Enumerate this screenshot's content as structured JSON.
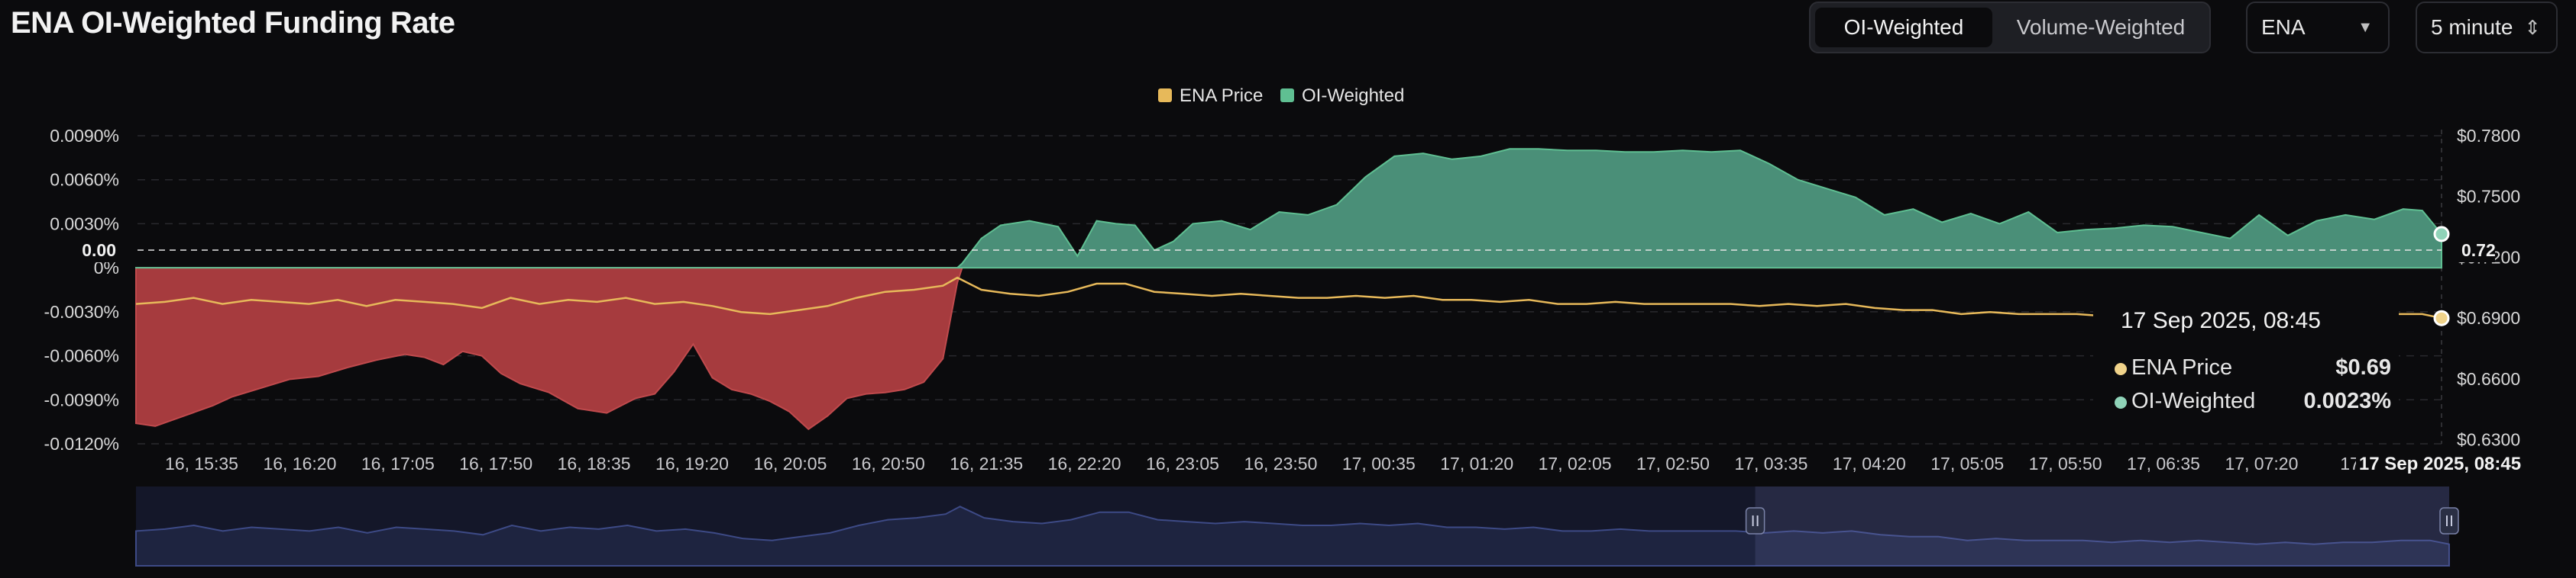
{
  "header": {
    "title": "ENA OI-Weighted Funding Rate",
    "tabs": [
      {
        "label": "OI-Weighted",
        "active": true
      },
      {
        "label": "Volume-Weighted",
        "active": false
      }
    ],
    "coin_select": {
      "value": "ENA",
      "icon": "caret-down-icon"
    },
    "interval_select": {
      "value": "5 minute",
      "icon": "updown-chevron-icon"
    }
  },
  "chart_data": {
    "type": "area",
    "title": "ENA OI-Weighted Funding Rate",
    "legend": {
      "placement": "top-center",
      "items": [
        {
          "name": "ENA Price",
          "color": "#e7b95a"
        },
        {
          "name": "OI-Weighted",
          "color": "#5fbf92"
        }
      ]
    },
    "colors": {
      "positive": "#4a8f78",
      "negative": "#a63b3e",
      "price": "#e7b95a",
      "grid": "#2a2a2e"
    },
    "y_left": {
      "ticks": [
        "0.0090%",
        "0.0060%",
        "0.0030%",
        "0%",
        "-0.0030%",
        "-0.0060%",
        "-0.0090%",
        "-0.0120%"
      ],
      "tick_values": [
        0.009,
        0.006,
        0.003,
        0,
        -0.003,
        -0.006,
        -0.009,
        -0.012
      ],
      "range": [
        -0.012,
        0.009
      ]
    },
    "y_right": {
      "ticks": [
        "$0.7800",
        "$0.7500",
        "$0.7200",
        "$0.6900",
        "$0.6600",
        "$0.6300"
      ],
      "tick_values": [
        0.78,
        0.75,
        0.72,
        0.69,
        0.66,
        0.63
      ],
      "range": [
        0.628,
        0.78
      ]
    },
    "x_ticks": [
      "16, 15:35",
      "16, 16:20",
      "16, 17:05",
      "16, 17:50",
      "16, 18:35",
      "16, 19:20",
      "16, 20:05",
      "16, 20:50",
      "16, 21:35",
      "16, 22:20",
      "16, 23:05",
      "16, 23:50",
      "17, 00:35",
      "17, 01:20",
      "17, 02:05",
      "17, 02:50",
      "17, 03:35",
      "17, 04:20",
      "17, 05:05",
      "17, 05:50",
      "17, 06:35",
      "17, 07:20",
      "17, 0"
    ],
    "x_range": [
      0,
      24
    ],
    "crosshair": {
      "x_label": "17 Sep 2025, 08:45",
      "left_label": "0.00",
      "right_label": "0.72",
      "left_value": 0.0,
      "right_value": 0.72
    },
    "series": [
      {
        "name": "OI-Weighted",
        "type": "area",
        "x": [
          0,
          0.2,
          0.5,
          0.8,
          1.0,
          1.3,
          1.6,
          1.9,
          2.2,
          2.5,
          2.8,
          3.0,
          3.2,
          3.4,
          3.6,
          3.8,
          4.0,
          4.3,
          4.6,
          4.9,
          5.2,
          5.4,
          5.6,
          5.8,
          6.0,
          6.2,
          6.4,
          6.6,
          6.8,
          7.0,
          7.2,
          7.4,
          7.6,
          7.8,
          8.0,
          8.2,
          8.4,
          8.55,
          8.6,
          8.8,
          9.0,
          9.3,
          9.6,
          9.8,
          10.0,
          10.2,
          10.4,
          10.6,
          10.8,
          11.0,
          11.3,
          11.6,
          11.9,
          12.2,
          12.5,
          12.8,
          13.1,
          13.4,
          13.7,
          14.0,
          14.3,
          14.6,
          14.9,
          15.2,
          15.5,
          15.8,
          16.1,
          16.4,
          16.7,
          17.0,
          17.3,
          17.6,
          17.9,
          18.2,
          18.5,
          18.8,
          19.1,
          19.4,
          19.7,
          20.0,
          20.3,
          20.6,
          20.9,
          21.2,
          21.5,
          21.8,
          22.1,
          22.4,
          22.7,
          23.0,
          23.3,
          23.6,
          23.8,
          24.0
        ],
        "values": [
          -0.0106,
          -0.0108,
          -0.0101,
          -0.0094,
          -0.0088,
          -0.0082,
          -0.0076,
          -0.0074,
          -0.0068,
          -0.0063,
          -0.0059,
          -0.0061,
          -0.0066,
          -0.0057,
          -0.006,
          -0.0072,
          -0.0079,
          -0.0085,
          -0.0096,
          -0.0099,
          -0.0089,
          -0.0086,
          -0.0071,
          -0.0052,
          -0.0075,
          -0.0083,
          -0.0086,
          -0.0091,
          -0.0098,
          -0.011,
          -0.0101,
          -0.0089,
          -0.0086,
          -0.0085,
          -0.0083,
          -0.0078,
          -0.0062,
          -0.001,
          0.0003,
          0.002,
          0.0029,
          0.0032,
          0.0028,
          0.0008,
          0.0032,
          0.003,
          0.0029,
          0.0012,
          0.0018,
          0.003,
          0.0032,
          0.0026,
          0.0038,
          0.0036,
          0.0043,
          0.0062,
          0.0076,
          0.0078,
          0.0074,
          0.0076,
          0.0081,
          0.0081,
          0.008,
          0.008,
          0.0079,
          0.0079,
          0.008,
          0.0079,
          0.008,
          0.0071,
          0.006,
          0.0054,
          0.0048,
          0.0036,
          0.004,
          0.0031,
          0.0037,
          0.003,
          0.0038,
          0.0024,
          0.0026,
          0.0027,
          0.0029,
          0.0028,
          0.0024,
          0.002,
          0.0036,
          0.0022,
          0.0032,
          0.0036,
          0.0033,
          0.004,
          0.0039,
          0.0023
        ]
      },
      {
        "name": "ENA Price",
        "type": "line",
        "x": [
          0,
          0.3,
          0.6,
          0.9,
          1.2,
          1.5,
          1.8,
          2.1,
          2.4,
          2.7,
          3.0,
          3.3,
          3.6,
          3.9,
          4.2,
          4.5,
          4.8,
          5.1,
          5.4,
          5.7,
          6.0,
          6.3,
          6.6,
          6.9,
          7.2,
          7.5,
          7.8,
          8.1,
          8.4,
          8.55,
          8.8,
          9.1,
          9.4,
          9.7,
          10.0,
          10.3,
          10.6,
          10.9,
          11.2,
          11.5,
          11.8,
          12.1,
          12.4,
          12.7,
          13.0,
          13.3,
          13.6,
          13.9,
          14.2,
          14.5,
          14.8,
          15.1,
          15.4,
          15.7,
          16.0,
          16.3,
          16.6,
          16.9,
          17.2,
          17.5,
          17.8,
          18.1,
          18.4,
          18.7,
          19.0,
          19.3,
          19.6,
          19.9,
          20.2,
          20.5,
          20.8,
          21.1,
          21.4,
          21.7,
          22.0,
          22.3,
          22.6,
          22.9,
          23.2,
          23.5,
          23.8,
          24.0
        ],
        "values": [
          0.697,
          0.698,
          0.7,
          0.697,
          0.699,
          0.698,
          0.697,
          0.699,
          0.696,
          0.699,
          0.698,
          0.697,
          0.695,
          0.7,
          0.697,
          0.699,
          0.698,
          0.7,
          0.697,
          0.698,
          0.696,
          0.693,
          0.692,
          0.694,
          0.696,
          0.7,
          0.703,
          0.704,
          0.706,
          0.71,
          0.704,
          0.702,
          0.701,
          0.703,
          0.707,
          0.707,
          0.703,
          0.702,
          0.701,
          0.702,
          0.701,
          0.7,
          0.7,
          0.701,
          0.7,
          0.701,
          0.699,
          0.699,
          0.698,
          0.699,
          0.697,
          0.697,
          0.698,
          0.697,
          0.697,
          0.697,
          0.697,
          0.696,
          0.697,
          0.696,
          0.697,
          0.695,
          0.694,
          0.694,
          0.692,
          0.693,
          0.692,
          0.692,
          0.692,
          0.691,
          0.692,
          0.691,
          0.692,
          0.691,
          0.69,
          0.691,
          0.69,
          0.691,
          0.691,
          0.692,
          0.692,
          0.69
        ]
      }
    ],
    "navigator": {
      "selected_range": [
        16.8,
        24
      ]
    }
  },
  "tooltip": {
    "title": "17 Sep 2025, 08:45",
    "rows": [
      {
        "name": "ENA Price",
        "value": "$0.69",
        "color": "#f0d38a"
      },
      {
        "name": "OI-Weighted",
        "value": "0.0023%",
        "color": "#8fd3b8"
      }
    ]
  }
}
